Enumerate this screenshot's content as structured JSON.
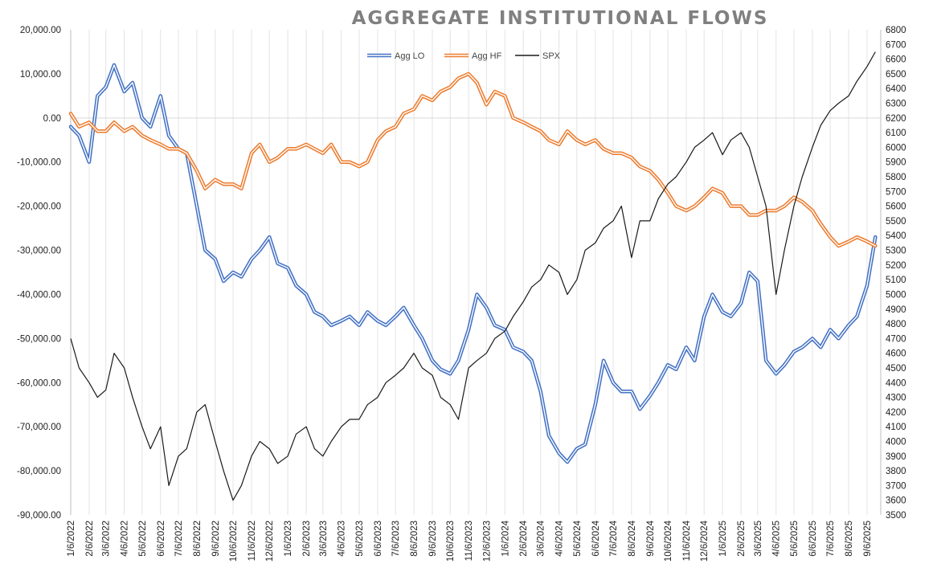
{
  "chart_data": {
    "type": "line",
    "title": "AGGREGATE INSTITUTIONAL FLOWS",
    "xlabel": "",
    "ylabel": "",
    "y2label": "",
    "ylim": [
      -90000,
      20000
    ],
    "y2lim": [
      3500,
      6800
    ],
    "y_tick_labels": [
      "20,000.00",
      "10,000.00",
      "0.00",
      "-10,000.00",
      "-20,000.00",
      "-30,000.00",
      "-40,000.00",
      "-50,000.00",
      "-60,000.00",
      "-70,000.00",
      "-80,000.00",
      "-90,000.00"
    ],
    "y2_tick_labels": [
      "6800",
      "6700",
      "6600",
      "6500",
      "6400",
      "6300",
      "6200",
      "6100",
      "6000",
      "5900",
      "5800",
      "5700",
      "5600",
      "5500",
      "5400",
      "5300",
      "5200",
      "5100",
      "5000",
      "4900",
      "4800",
      "4700",
      "4600",
      "4500",
      "4400",
      "4300",
      "4200",
      "4100",
      "4000",
      "3900",
      "3800",
      "3700",
      "3600",
      "3500"
    ],
    "x_tick_labels": [
      "1/6/2022",
      "2/6/2022",
      "3/6/2022",
      "4/6/2022",
      "5/6/2022",
      "6/6/2022",
      "7/6/2022",
      "8/6/2022",
      "9/6/2022",
      "10/6/2022",
      "11/6/2022",
      "12/6/2022",
      "1/6/2023",
      "2/6/2023",
      "3/6/2023",
      "4/6/2023",
      "5/6/2023",
      "6/6/2023",
      "7/6/2023",
      "8/6/2023",
      "9/6/2023",
      "10/6/2023",
      "11/6/2023",
      "12/6/2023",
      "1/6/2024",
      "2/6/2024",
      "3/6/2024",
      "4/6/2024",
      "5/6/2024",
      "6/6/2024",
      "7/6/2024",
      "8/6/2024",
      "9/6/2024",
      "10/6/2024",
      "11/6/2024",
      "12/6/2024",
      "1/6/2025",
      "2/6/2025",
      "3/6/2025",
      "4/6/2025",
      "5/6/2025",
      "6/6/2025",
      "7/6/2025",
      "8/6/2025",
      "9/6/2025"
    ],
    "legend_position": "top-center",
    "grid": "vertical",
    "series": [
      {
        "name": "Agg LO",
        "axis": "left",
        "color": "#4472C4",
        "style": "double",
        "x": [
          "1/6/2022",
          "1/20/2022",
          "2/6/2022",
          "2/20/2022",
          "3/6/2022",
          "3/20/2022",
          "4/6/2022",
          "4/20/2022",
          "5/6/2022",
          "5/20/2022",
          "6/6/2022",
          "6/20/2022",
          "7/6/2022",
          "7/20/2022",
          "8/6/2022",
          "8/20/2022",
          "9/6/2022",
          "9/20/2022",
          "10/6/2022",
          "10/20/2022",
          "11/6/2022",
          "11/20/2022",
          "12/6/2022",
          "12/20/2022",
          "1/6/2023",
          "1/20/2023",
          "2/6/2023",
          "2/20/2023",
          "3/6/2023",
          "3/20/2023",
          "4/6/2023",
          "4/20/2023",
          "5/6/2023",
          "5/20/2023",
          "6/6/2023",
          "6/20/2023",
          "7/6/2023",
          "7/20/2023",
          "8/6/2023",
          "8/20/2023",
          "9/6/2023",
          "9/20/2023",
          "10/6/2023",
          "10/20/2023",
          "11/6/2023",
          "11/20/2023",
          "12/6/2023",
          "12/20/2023",
          "1/6/2024",
          "1/20/2024",
          "2/6/2024",
          "2/20/2024",
          "3/6/2024",
          "3/20/2024",
          "4/6/2024",
          "4/20/2024",
          "5/6/2024",
          "5/20/2024",
          "6/6/2024",
          "6/20/2024",
          "7/6/2024",
          "7/20/2024",
          "8/6/2024",
          "8/20/2024",
          "9/6/2024",
          "9/20/2024",
          "10/6/2024",
          "10/20/2024",
          "11/6/2024",
          "11/20/2024",
          "12/6/2024",
          "12/20/2024",
          "1/6/2025",
          "1/20/2025",
          "2/6/2025",
          "2/20/2025",
          "3/6/2025",
          "3/20/2025",
          "4/6/2025",
          "4/20/2025",
          "5/6/2025",
          "5/20/2025",
          "6/6/2025",
          "6/20/2025",
          "7/6/2025",
          "7/20/2025",
          "8/6/2025",
          "8/20/2025",
          "9/6/2025",
          "9/20/2025"
        ],
        "values": [
          -2000,
          -4000,
          -10000,
          5000,
          7000,
          12000,
          6000,
          8000,
          0,
          -2000,
          5000,
          -4000,
          -7000,
          -8000,
          -20000,
          -30000,
          -32000,
          -37000,
          -35000,
          -36000,
          -32000,
          -30000,
          -27000,
          -33000,
          -34000,
          -38000,
          -40000,
          -44000,
          -45000,
          -47000,
          -46000,
          -45000,
          -47000,
          -44000,
          -46000,
          -47000,
          -45000,
          -43000,
          -47000,
          -50000,
          -55000,
          -57000,
          -58000,
          -55000,
          -48000,
          -40000,
          -43000,
          -47000,
          -48000,
          -52000,
          -53000,
          -55000,
          -62000,
          -72000,
          -76000,
          -78000,
          -75000,
          -74000,
          -65000,
          -55000,
          -60000,
          -62000,
          -62000,
          -66000,
          -63000,
          -60000,
          -56000,
          -57000,
          -52000,
          -55000,
          -45000,
          -40000,
          -44000,
          -45000,
          -42000,
          -35000,
          -37000,
          -55000,
          -58000,
          -56000,
          -53000,
          -52000,
          -50000,
          -52000,
          -48000,
          -50000,
          -47000,
          -45000,
          -38000,
          -27000
        ]
      },
      {
        "name": "Agg HF",
        "axis": "left",
        "color": "#ED7D31",
        "style": "double",
        "x": [
          "1/6/2022",
          "1/20/2022",
          "2/6/2022",
          "2/20/2022",
          "3/6/2022",
          "3/20/2022",
          "4/6/2022",
          "4/20/2022",
          "5/6/2022",
          "5/20/2022",
          "6/6/2022",
          "6/20/2022",
          "7/6/2022",
          "7/20/2022",
          "8/6/2022",
          "8/20/2022",
          "9/6/2022",
          "9/20/2022",
          "10/6/2022",
          "10/20/2022",
          "11/6/2022",
          "11/20/2022",
          "12/6/2022",
          "12/20/2022",
          "1/6/2023",
          "1/20/2023",
          "2/6/2023",
          "2/20/2023",
          "3/6/2023",
          "3/20/2023",
          "4/6/2023",
          "4/20/2023",
          "5/6/2023",
          "5/20/2023",
          "6/6/2023",
          "6/20/2023",
          "7/6/2023",
          "7/20/2023",
          "8/6/2023",
          "8/20/2023",
          "9/6/2023",
          "9/20/2023",
          "10/6/2023",
          "10/20/2023",
          "11/6/2023",
          "11/20/2023",
          "12/6/2023",
          "12/20/2023",
          "1/6/2024",
          "1/20/2024",
          "2/6/2024",
          "2/20/2024",
          "3/6/2024",
          "3/20/2024",
          "4/6/2024",
          "4/20/2024",
          "5/6/2024",
          "5/20/2024",
          "6/6/2024",
          "6/20/2024",
          "7/6/2024",
          "7/20/2024",
          "8/6/2024",
          "8/20/2024",
          "9/6/2024",
          "9/20/2024",
          "10/6/2024",
          "10/20/2024",
          "11/6/2024",
          "11/20/2024",
          "12/6/2024",
          "12/20/2024",
          "1/6/2025",
          "1/20/2025",
          "2/6/2025",
          "2/20/2025",
          "3/6/2025",
          "3/20/2025",
          "4/6/2025",
          "4/20/2025",
          "5/6/2025",
          "5/20/2025",
          "6/6/2025",
          "6/20/2025",
          "7/6/2025",
          "7/20/2025",
          "8/6/2025",
          "8/20/2025",
          "9/6/2025",
          "9/20/2025"
        ],
        "values": [
          1000,
          -2000,
          -1000,
          -3000,
          -3000,
          -1000,
          -3000,
          -2000,
          -4000,
          -5000,
          -6000,
          -7000,
          -7000,
          -8000,
          -12000,
          -16000,
          -14000,
          -15000,
          -15000,
          -16000,
          -8000,
          -6000,
          -10000,
          -9000,
          -7000,
          -7000,
          -6000,
          -7000,
          -8000,
          -6000,
          -10000,
          -10000,
          -11000,
          -10000,
          -5000,
          -3000,
          -2000,
          1000,
          2000,
          5000,
          4000,
          6000,
          7000,
          9000,
          10000,
          8000,
          3000,
          6000,
          5000,
          0,
          -1000,
          -2000,
          -3000,
          -5000,
          -6000,
          -3000,
          -5000,
          -6000,
          -5000,
          -7000,
          -8000,
          -8000,
          -9000,
          -11000,
          -12000,
          -14000,
          -17000,
          -20000,
          -21000,
          -20000,
          -18000,
          -16000,
          -17000,
          -20000,
          -20000,
          -22000,
          -22000,
          -21000,
          -21000,
          -20000,
          -18000,
          -19000,
          -21000,
          -24000,
          -27000,
          -29000,
          -28000,
          -27000,
          -28000,
          -29000
        ]
      },
      {
        "name": "SPX",
        "axis": "right",
        "color": "#1A1A1A",
        "style": "single",
        "x": [
          "1/6/2022",
          "1/20/2022",
          "2/6/2022",
          "2/20/2022",
          "3/6/2022",
          "3/20/2022",
          "4/6/2022",
          "4/20/2022",
          "5/6/2022",
          "5/20/2022",
          "6/6/2022",
          "6/20/2022",
          "7/6/2022",
          "7/20/2022",
          "8/6/2022",
          "8/20/2022",
          "9/6/2022",
          "9/20/2022",
          "10/6/2022",
          "10/20/2022",
          "11/6/2022",
          "11/20/2022",
          "12/6/2022",
          "12/20/2022",
          "1/6/2023",
          "1/20/2023",
          "2/6/2023",
          "2/20/2023",
          "3/6/2023",
          "3/20/2023",
          "4/6/2023",
          "4/20/2023",
          "5/6/2023",
          "5/20/2023",
          "6/6/2023",
          "6/20/2023",
          "7/6/2023",
          "7/20/2023",
          "8/6/2023",
          "8/20/2023",
          "9/6/2023",
          "9/20/2023",
          "10/6/2023",
          "10/20/2023",
          "11/6/2023",
          "11/20/2023",
          "12/6/2023",
          "12/20/2023",
          "1/6/2024",
          "1/20/2024",
          "2/6/2024",
          "2/20/2024",
          "3/6/2024",
          "3/20/2024",
          "4/6/2024",
          "4/20/2024",
          "5/6/2024",
          "5/20/2024",
          "6/6/2024",
          "6/20/2024",
          "7/6/2024",
          "7/20/2024",
          "8/6/2024",
          "8/20/2024",
          "9/6/2024",
          "9/20/2024",
          "10/6/2024",
          "10/20/2024",
          "11/6/2024",
          "11/20/2024",
          "12/6/2024",
          "12/20/2024",
          "1/6/2025",
          "1/20/2025",
          "2/6/2025",
          "2/20/2025",
          "3/6/2025",
          "3/20/2025",
          "4/6/2025",
          "4/20/2025",
          "5/6/2025",
          "5/20/2025",
          "6/6/2025",
          "6/20/2025",
          "7/6/2025",
          "7/20/2025",
          "8/6/2025",
          "8/20/2025",
          "9/6/2025",
          "9/20/2025"
        ],
        "values": [
          4700,
          4500,
          4400,
          4300,
          4350,
          4600,
          4500,
          4300,
          4100,
          3950,
          4100,
          3700,
          3900,
          3950,
          4200,
          4250,
          4000,
          3800,
          3600,
          3700,
          3900,
          4000,
          3950,
          3850,
          3900,
          4050,
          4100,
          3950,
          3900,
          4000,
          4100,
          4150,
          4150,
          4250,
          4300,
          4400,
          4450,
          4500,
          4600,
          4500,
          4450,
          4300,
          4250,
          4150,
          4500,
          4550,
          4600,
          4700,
          4750,
          4850,
          4950,
          5050,
          5100,
          5200,
          5150,
          5000,
          5100,
          5300,
          5350,
          5450,
          5500,
          5600,
          5250,
          5500,
          5500,
          5650,
          5750,
          5800,
          5900,
          6000,
          6050,
          6100,
          5950,
          6050,
          6100,
          6000,
          5800,
          5600,
          5000,
          5300,
          5600,
          5800,
          6000,
          6150,
          6250,
          6300,
          6350,
          6450,
          6550,
          6650
        ]
      }
    ]
  }
}
